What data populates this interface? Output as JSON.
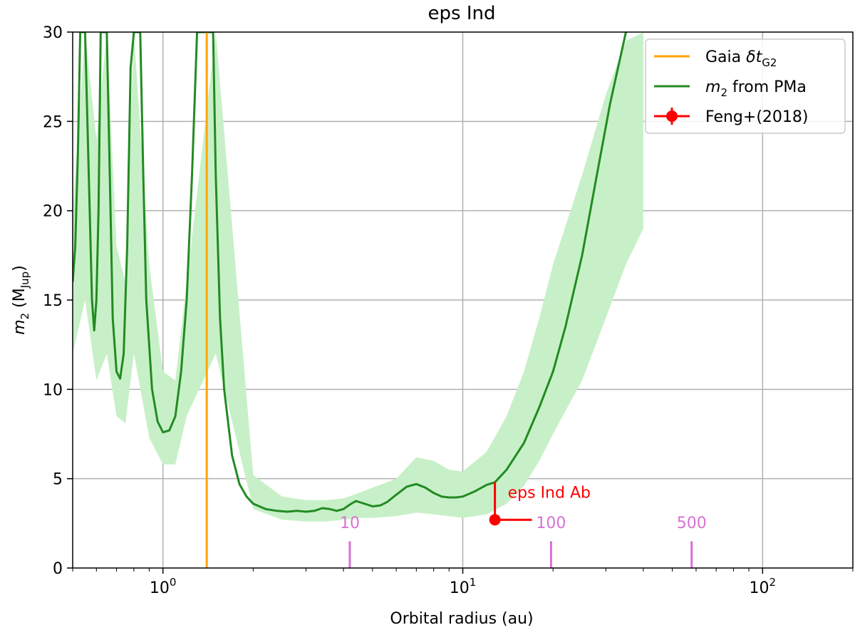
{
  "chart_data": {
    "type": "line",
    "title": "eps Ind",
    "xlabel": "Orbital radius (au)",
    "ylabel_parts": {
      "base": "m",
      "sub": "2",
      "mid": " (M",
      "sub2": "Jup",
      "end": ")"
    },
    "x_scale": "log",
    "xlim": [
      0.5,
      200
    ],
    "ylim": [
      0,
      30
    ],
    "x_ticks": [
      {
        "value": 1,
        "base": "10",
        "exp": "0"
      },
      {
        "value": 10,
        "base": "10",
        "exp": "1"
      },
      {
        "value": 100,
        "base": "10",
        "exp": "2"
      }
    ],
    "y_ticks": [
      0,
      5,
      10,
      15,
      20,
      25,
      30
    ],
    "grid": true,
    "legend_position": "top-right",
    "colors": {
      "gaia": "#FFA500",
      "pma_line": "#228B22",
      "pma_band": "#C8F0C8",
      "feng": "#FF0000",
      "period": "#DA70D6"
    },
    "series": [
      {
        "name": "m2 from PMa",
        "legend_parts": {
          "base": "m",
          "sub": "2",
          "rest": " from PMa"
        },
        "x": [
          0.5,
          0.51,
          0.52,
          0.53,
          0.55,
          0.57,
          0.58,
          0.59,
          0.6,
          0.61,
          0.62,
          0.635,
          0.65,
          0.665,
          0.68,
          0.7,
          0.72,
          0.74,
          0.76,
          0.78,
          0.8,
          0.82,
          0.84,
          0.86,
          0.88,
          0.92,
          0.96,
          1.0,
          1.05,
          1.1,
          1.15,
          1.2,
          1.25,
          1.3,
          1.35,
          1.4,
          1.43,
          1.45,
          1.47,
          1.5,
          1.55,
          1.6,
          1.7,
          1.8,
          1.9,
          2.0,
          2.2,
          2.4,
          2.6,
          2.8,
          3.0,
          3.2,
          3.4,
          3.6,
          3.8,
          4.0,
          4.2,
          4.4,
          4.6,
          4.8,
          5.0,
          5.3,
          5.6,
          6.0,
          6.5,
          7.0,
          7.5,
          8.0,
          8.5,
          9.0,
          9.5,
          10.0,
          11.0,
          12.0,
          12.8,
          14.0,
          16.0,
          18.0,
          20.0,
          22.0,
          25.0,
          28.0,
          31.0,
          35.0
        ],
        "y": [
          16,
          18,
          23,
          30,
          30,
          20,
          15,
          13.3,
          15,
          20,
          30,
          30,
          30,
          22,
          14,
          11,
          10.6,
          12,
          18,
          28,
          30,
          30,
          30,
          22,
          15,
          10,
          8.2,
          7.6,
          7.7,
          8.5,
          11,
          15,
          22,
          30,
          30,
          30,
          30,
          30,
          30,
          22,
          14,
          10,
          6.3,
          4.7,
          4.0,
          3.6,
          3.3,
          3.2,
          3.15,
          3.2,
          3.15,
          3.2,
          3.35,
          3.3,
          3.2,
          3.3,
          3.55,
          3.75,
          3.65,
          3.55,
          3.45,
          3.5,
          3.7,
          4.1,
          4.55,
          4.7,
          4.5,
          4.2,
          4.0,
          3.95,
          3.95,
          4.0,
          4.3,
          4.65,
          4.8,
          5.5,
          7.0,
          9.0,
          11.0,
          13.5,
          17.5,
          22.0,
          26.0,
          30.0
        ]
      },
      {
        "name": "Gaia δt_G2",
        "legend_parts": {
          "base": "Gaia ",
          "italic": "δt",
          "sub": "G2"
        },
        "x": [
          1.4,
          1.4
        ],
        "y": [
          0,
          30
        ]
      }
    ],
    "band": {
      "x": [
        0.5,
        0.55,
        0.6,
        0.65,
        0.7,
        0.75,
        0.8,
        0.9,
        1.0,
        1.1,
        1.2,
        1.5,
        2.0,
        2.5,
        3.0,
        3.5,
        4.0,
        4.5,
        5.0,
        6.0,
        7.0,
        8.0,
        9.0,
        10.0,
        12.0,
        14.0,
        16.0,
        18.0,
        20.0,
        25.0,
        30.0,
        35.0,
        40.0
      ],
      "upper": [
        20,
        30,
        24,
        30,
        18,
        16,
        30,
        17,
        11,
        10.5,
        16,
        30,
        5.2,
        4.0,
        3.8,
        3.8,
        3.9,
        4.2,
        4.5,
        5.0,
        6.2,
        6.0,
        5.5,
        5.4,
        6.5,
        8.5,
        11.0,
        14.0,
        17.0,
        22.0,
        26.5,
        29.5,
        30.0
      ],
      "lower": [
        12,
        15,
        10.5,
        12,
        8.5,
        8.1,
        12,
        7.3,
        5.8,
        5.8,
        8.5,
        12,
        3.3,
        2.7,
        2.6,
        2.6,
        2.7,
        2.8,
        2.8,
        2.9,
        3.1,
        3.0,
        2.9,
        2.8,
        3.0,
        3.6,
        4.6,
        6.0,
        7.5,
        10.5,
        14.0,
        17.0,
        19.0
      ]
    },
    "feng_point": {
      "name": "Feng+(2018)",
      "label": "eps Ind Ab",
      "x": 12.8,
      "y": 2.7,
      "x_err_minus": 0.4,
      "x_err_plus": 4.2,
      "y_err_minus": 0.1,
      "y_err_plus": 2.1
    },
    "period_markers": [
      {
        "label": "10",
        "x": 4.2,
        "tick_ymax": 1.5,
        "label_y": 2.6
      },
      {
        "label": "100",
        "x": 19.7,
        "tick_ymax": 1.5,
        "label_y": 2.6
      },
      {
        "label": "500",
        "x": 58.0,
        "tick_ymax": 1.5,
        "label_y": 2.6
      }
    ]
  }
}
